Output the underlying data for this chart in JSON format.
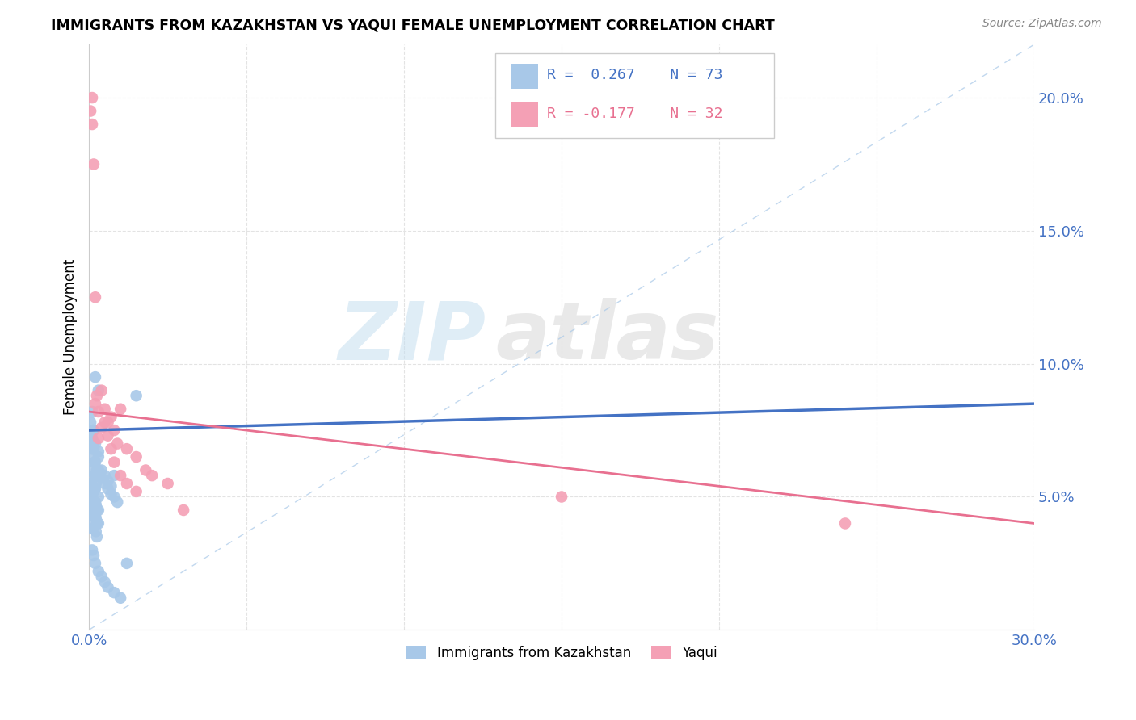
{
  "title": "IMMIGRANTS FROM KAZAKHSTAN VS YAQUI FEMALE UNEMPLOYMENT CORRELATION CHART",
  "source": "Source: ZipAtlas.com",
  "ylabel": "Female Unemployment",
  "right_yticks": [
    5.0,
    10.0,
    15.0,
    20.0
  ],
  "xlim": [
    0.0,
    0.3
  ],
  "ylim": [
    0.0,
    0.22
  ],
  "blue_color": "#a8c8e8",
  "pink_color": "#f4a0b5",
  "blue_line_color": "#4472c4",
  "pink_line_color": "#e87090",
  "diag_line_color": "#a8c8e8",
  "legend_blue_R": "R =  0.267",
  "legend_blue_N": "N = 73",
  "legend_pink_R": "R = -0.177",
  "legend_pink_N": "N = 32",
  "label_blue": "Immigrants from Kazakhstan",
  "label_pink": "Yaqui",
  "watermark_zip": "ZIP",
  "watermark_atlas": "atlas",
  "blue_scatter_x": [
    0.0005,
    0.0008,
    0.001,
    0.0012,
    0.0015,
    0.0018,
    0.002,
    0.0022,
    0.0025,
    0.003,
    0.0005,
    0.0008,
    0.001,
    0.0012,
    0.0015,
    0.0018,
    0.002,
    0.0022,
    0.0025,
    0.003,
    0.0005,
    0.0008,
    0.001,
    0.0012,
    0.0015,
    0.0018,
    0.002,
    0.0022,
    0.0025,
    0.003,
    0.0005,
    0.0008,
    0.001,
    0.0012,
    0.0015,
    0.0018,
    0.002,
    0.0022,
    0.0025,
    0.003,
    0.0005,
    0.001,
    0.0015,
    0.002,
    0.003,
    0.004,
    0.005,
    0.006,
    0.007,
    0.008,
    0.001,
    0.0015,
    0.002,
    0.003,
    0.004,
    0.005,
    0.006,
    0.007,
    0.008,
    0.009,
    0.001,
    0.0015,
    0.002,
    0.003,
    0.004,
    0.005,
    0.006,
    0.008,
    0.01,
    0.012,
    0.002,
    0.003,
    0.015
  ],
  "blue_scatter_y": [
    0.065,
    0.072,
    0.068,
    0.075,
    0.07,
    0.063,
    0.058,
    0.055,
    0.06,
    0.067,
    0.06,
    0.055,
    0.05,
    0.048,
    0.052,
    0.058,
    0.053,
    0.047,
    0.045,
    0.05,
    0.055,
    0.05,
    0.045,
    0.043,
    0.048,
    0.053,
    0.048,
    0.042,
    0.04,
    0.045,
    0.05,
    0.045,
    0.04,
    0.038,
    0.043,
    0.048,
    0.043,
    0.037,
    0.035,
    0.04,
    0.078,
    0.082,
    0.075,
    0.07,
    0.065,
    0.06,
    0.058,
    0.056,
    0.054,
    0.058,
    0.072,
    0.068,
    0.063,
    0.06,
    0.057,
    0.055,
    0.053,
    0.051,
    0.05,
    0.048,
    0.03,
    0.028,
    0.025,
    0.022,
    0.02,
    0.018,
    0.016,
    0.014,
    0.012,
    0.025,
    0.095,
    0.09,
    0.088
  ],
  "pink_scatter_x": [
    0.0005,
    0.001,
    0.0015,
    0.002,
    0.0025,
    0.003,
    0.004,
    0.005,
    0.006,
    0.007,
    0.008,
    0.009,
    0.01,
    0.012,
    0.015,
    0.018,
    0.02,
    0.025,
    0.03,
    0.001,
    0.002,
    0.003,
    0.004,
    0.005,
    0.006,
    0.007,
    0.008,
    0.01,
    0.012,
    0.015,
    0.15,
    0.24
  ],
  "pink_scatter_y": [
    0.195,
    0.2,
    0.175,
    0.085,
    0.088,
    0.082,
    0.09,
    0.078,
    0.073,
    0.08,
    0.075,
    0.07,
    0.083,
    0.068,
    0.065,
    0.06,
    0.058,
    0.055,
    0.045,
    0.19,
    0.125,
    0.072,
    0.076,
    0.083,
    0.078,
    0.068,
    0.063,
    0.058,
    0.055,
    0.052,
    0.05,
    0.04
  ]
}
